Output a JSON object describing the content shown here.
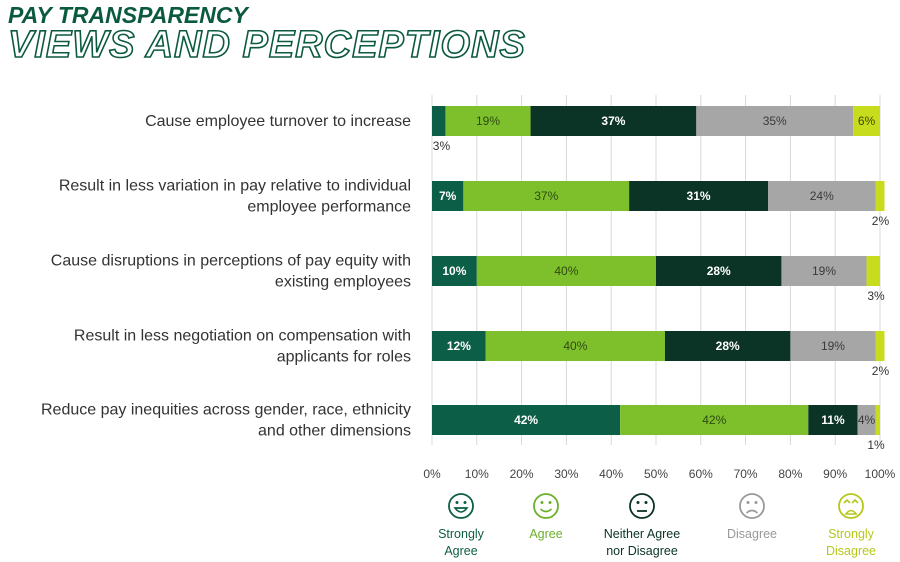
{
  "header": {
    "title_line1": "PAY TRANSPARENCY",
    "title_line2": "VIEWS AND PERCEPTIONS"
  },
  "chart_data": {
    "type": "bar",
    "orientation": "horizontal",
    "stacked": true,
    "title": "PAY TRANSPARENCY VIEWS AND PERCEPTIONS",
    "categories": [
      [
        "Cause employee turnover to increase"
      ],
      [
        "Result in less variation in pay relative to individual",
        "employee performance"
      ],
      [
        "Cause disruptions in perceptions of pay equity with",
        "existing employees"
      ],
      [
        "Result in less negotiation on compensation with",
        "applicants for roles"
      ],
      [
        "Reduce pay inequities across gender, race, ethnicity",
        "and other dimensions"
      ]
    ],
    "series": [
      {
        "name": "Strongly Agree",
        "name_lines": [
          "Strongly",
          "Agree"
        ],
        "color": "#0d5e46",
        "label_color": "#ffffff",
        "legend_text_color": "#0d5e46",
        "icon": "grinning-face-icon",
        "values": [
          3,
          7,
          10,
          12,
          42
        ],
        "labels": [
          "3%",
          "7%",
          "10%",
          "12%",
          "42%"
        ]
      },
      {
        "name": "Agree",
        "name_lines": [
          "Agree"
        ],
        "color": "#7ec02c",
        "label_color": "#2e4a10",
        "legend_text_color": "#6cb02a",
        "icon": "smiling-face-icon",
        "values": [
          19,
          37,
          40,
          40,
          42
        ],
        "labels": [
          "19%",
          "37%",
          "40%",
          "40%",
          "42%"
        ]
      },
      {
        "name": "Neither Agree nor Disagree",
        "name_lines": [
          "Neither Agree",
          "nor Disagree"
        ],
        "color": "#0b3326",
        "label_color": "#ffffff",
        "legend_text_color": "#0b3326",
        "icon": "neutral-face-icon",
        "values": [
          37,
          31,
          28,
          28,
          11
        ],
        "labels": [
          "37%",
          "31%",
          "28%",
          "28%",
          "11%"
        ]
      },
      {
        "name": "Disagree",
        "name_lines": [
          "Disagree"
        ],
        "color": "#a6a6a6",
        "label_color": "#3a3a3a",
        "legend_text_color": "#999999",
        "icon": "frowning-face-icon",
        "values": [
          35,
          24,
          19,
          19,
          4
        ],
        "labels": [
          "35%",
          "24%",
          "19%",
          "19%",
          "4%"
        ]
      },
      {
        "name": "Strongly Disagree",
        "name_lines": [
          "Strongly",
          "Disagree"
        ],
        "color": "#c8dc1e",
        "label_color": "#3a4a00",
        "legend_text_color": "#b6c81a",
        "icon": "crying-face-icon",
        "values": [
          6,
          2,
          3,
          2,
          1
        ],
        "labels": [
          "6%",
          "2%",
          "3%",
          "2%",
          "1%"
        ]
      }
    ],
    "xlim": [
      0,
      100
    ],
    "xticks": [
      "0%",
      "10%",
      "20%",
      "30%",
      "40%",
      "50%",
      "60%",
      "70%",
      "80%",
      "90%",
      "100%"
    ],
    "legend_position": "bottom"
  }
}
